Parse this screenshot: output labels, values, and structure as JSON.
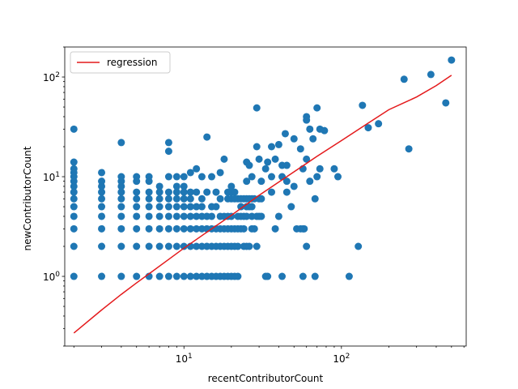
{
  "chart_data": {
    "type": "scatter",
    "title": "",
    "xlabel": "recentContributorCount",
    "ylabel": "newContributorCount",
    "xscale": "log",
    "yscale": "log",
    "xlim": [
      1.75,
      620
    ],
    "ylim": [
      0.2,
      200
    ],
    "x_ticks": [
      {
        "value": 10,
        "base": "10",
        "exp": "1"
      },
      {
        "value": 100,
        "base": "10",
        "exp": "2"
      }
    ],
    "y_ticks": [
      {
        "value": 1,
        "base": "10",
        "exp": "0"
      },
      {
        "value": 10,
        "base": "10",
        "exp": "1"
      },
      {
        "value": 100,
        "base": "10",
        "exp": "2"
      }
    ],
    "grid": false,
    "legend": {
      "position": "top-left",
      "entries": [
        "regression"
      ]
    },
    "colors": {
      "points": "#1f77b4",
      "regression": "#e41a1c"
    },
    "series": [
      {
        "kind": "scatter",
        "points": [
          [
            2,
            1
          ],
          [
            2,
            2
          ],
          [
            2,
            3
          ],
          [
            2,
            4
          ],
          [
            2,
            5
          ],
          [
            2,
            6
          ],
          [
            2,
            7
          ],
          [
            2,
            8
          ],
          [
            2,
            9
          ],
          [
            2,
            10
          ],
          [
            2,
            11
          ],
          [
            2,
            12
          ],
          [
            2,
            14
          ],
          [
            2,
            30
          ],
          [
            3,
            1
          ],
          [
            3,
            2
          ],
          [
            3,
            3
          ],
          [
            3,
            4
          ],
          [
            3,
            5
          ],
          [
            3,
            6
          ],
          [
            3,
            7
          ],
          [
            3,
            8
          ],
          [
            3,
            9
          ],
          [
            3,
            11
          ],
          [
            4,
            1
          ],
          [
            4,
            2
          ],
          [
            4,
            3
          ],
          [
            4,
            4
          ],
          [
            4,
            5
          ],
          [
            4,
            6
          ],
          [
            4,
            7
          ],
          [
            4,
            8
          ],
          [
            4,
            9
          ],
          [
            4,
            10
          ],
          [
            4,
            22
          ],
          [
            5,
            1
          ],
          [
            5,
            2
          ],
          [
            5,
            3
          ],
          [
            5,
            4
          ],
          [
            5,
            5
          ],
          [
            5,
            6
          ],
          [
            5,
            7
          ],
          [
            5,
            9
          ],
          [
            5,
            10
          ],
          [
            6,
            1
          ],
          [
            6,
            2
          ],
          [
            6,
            3
          ],
          [
            6,
            4
          ],
          [
            6,
            5
          ],
          [
            6,
            6
          ],
          [
            6,
            7
          ],
          [
            6,
            9
          ],
          [
            6,
            10
          ],
          [
            7,
            1
          ],
          [
            7,
            2
          ],
          [
            7,
            3
          ],
          [
            7,
            4
          ],
          [
            7,
            5
          ],
          [
            7,
            6
          ],
          [
            7,
            7
          ],
          [
            7,
            8
          ],
          [
            8,
            1
          ],
          [
            8,
            2
          ],
          [
            8,
            3
          ],
          [
            8,
            4
          ],
          [
            8,
            5
          ],
          [
            8,
            6
          ],
          [
            8,
            7
          ],
          [
            8,
            10
          ],
          [
            8,
            18
          ],
          [
            8,
            22
          ],
          [
            9,
            1
          ],
          [
            9,
            2
          ],
          [
            9,
            3
          ],
          [
            9,
            4
          ],
          [
            9,
            5
          ],
          [
            9,
            6
          ],
          [
            9,
            7
          ],
          [
            9,
            8
          ],
          [
            9,
            10
          ],
          [
            10,
            1
          ],
          [
            10,
            2
          ],
          [
            10,
            3
          ],
          [
            10,
            4
          ],
          [
            10,
            5
          ],
          [
            10,
            6
          ],
          [
            10,
            7
          ],
          [
            10,
            8
          ],
          [
            10,
            10
          ],
          [
            11,
            1
          ],
          [
            11,
            2
          ],
          [
            11,
            3
          ],
          [
            11,
            4
          ],
          [
            11,
            5
          ],
          [
            11,
            6
          ],
          [
            11,
            7
          ],
          [
            11,
            11
          ],
          [
            12,
            1
          ],
          [
            12,
            2
          ],
          [
            12,
            3
          ],
          [
            12,
            4
          ],
          [
            12,
            5
          ],
          [
            12,
            7
          ],
          [
            12,
            12
          ],
          [
            13,
            1
          ],
          [
            13,
            2
          ],
          [
            13,
            3
          ],
          [
            13,
            4
          ],
          [
            13,
            5
          ],
          [
            13,
            6
          ],
          [
            13,
            10
          ],
          [
            14,
            1
          ],
          [
            14,
            2
          ],
          [
            14,
            3
          ],
          [
            14,
            4
          ],
          [
            14,
            7
          ],
          [
            14,
            25
          ],
          [
            15,
            1
          ],
          [
            15,
            2
          ],
          [
            15,
            3
          ],
          [
            15,
            4
          ],
          [
            15,
            5
          ],
          [
            15,
            10
          ],
          [
            16,
            1
          ],
          [
            16,
            2
          ],
          [
            16,
            3
          ],
          [
            16,
            5
          ],
          [
            16,
            7
          ],
          [
            17,
            1
          ],
          [
            17,
            2
          ],
          [
            17,
            3
          ],
          [
            17,
            4
          ],
          [
            17,
            6
          ],
          [
            17,
            11
          ],
          [
            18,
            1
          ],
          [
            18,
            2
          ],
          [
            18,
            3
          ],
          [
            18,
            4
          ],
          [
            18,
            15
          ],
          [
            19,
            1
          ],
          [
            19,
            2
          ],
          [
            19,
            3
          ],
          [
            19,
            4
          ],
          [
            19,
            6
          ],
          [
            19,
            7
          ],
          [
            20,
            1
          ],
          [
            20,
            2
          ],
          [
            20,
            3
          ],
          [
            20,
            4
          ],
          [
            20,
            6
          ],
          [
            20,
            7
          ],
          [
            20,
            8
          ],
          [
            21,
            1
          ],
          [
            21,
            2
          ],
          [
            21,
            3
          ],
          [
            21,
            6
          ],
          [
            21,
            7
          ],
          [
            22,
            1
          ],
          [
            22,
            2
          ],
          [
            22,
            3
          ],
          [
            22,
            4
          ],
          [
            22,
            6
          ],
          [
            23,
            3
          ],
          [
            23,
            4
          ],
          [
            23,
            5
          ],
          [
            23,
            6
          ],
          [
            24,
            2
          ],
          [
            24,
            3
          ],
          [
            24,
            4
          ],
          [
            24,
            6
          ],
          [
            25,
            2
          ],
          [
            25,
            4
          ],
          [
            25,
            5
          ],
          [
            25,
            6
          ],
          [
            25,
            9
          ],
          [
            25,
            14
          ],
          [
            26,
            2
          ],
          [
            26,
            5
          ],
          [
            26,
            6
          ],
          [
            26,
            13
          ],
          [
            27,
            3
          ],
          [
            27,
            4
          ],
          [
            27,
            5
          ],
          [
            27,
            6
          ],
          [
            27,
            10
          ],
          [
            28,
            3
          ],
          [
            28,
            6
          ],
          [
            29,
            2
          ],
          [
            29,
            4
          ],
          [
            29,
            20
          ],
          [
            29,
            49
          ],
          [
            30,
            4
          ],
          [
            30,
            6
          ],
          [
            30,
            15
          ],
          [
            31,
            4
          ],
          [
            31,
            6
          ],
          [
            31,
            9
          ],
          [
            33,
            1
          ],
          [
            33,
            12
          ],
          [
            34,
            1
          ],
          [
            34,
            14
          ],
          [
            36,
            7
          ],
          [
            36,
            10
          ],
          [
            36,
            20
          ],
          [
            38,
            3
          ],
          [
            38,
            15
          ],
          [
            40,
            4
          ],
          [
            40,
            21
          ],
          [
            42,
            1
          ],
          [
            42,
            10
          ],
          [
            42,
            13
          ],
          [
            44,
            27
          ],
          [
            45,
            7
          ],
          [
            45,
            9
          ],
          [
            45,
            13
          ],
          [
            48,
            5
          ],
          [
            50,
            8
          ],
          [
            50,
            24
          ],
          [
            52,
            3
          ],
          [
            55,
            3
          ],
          [
            55,
            19
          ],
          [
            57,
            1
          ],
          [
            57,
            3
          ],
          [
            57,
            12
          ],
          [
            58,
            3
          ],
          [
            60,
            2
          ],
          [
            60,
            15
          ],
          [
            60,
            37
          ],
          [
            60,
            40
          ],
          [
            63,
            9
          ],
          [
            63,
            30
          ],
          [
            66,
            24
          ],
          [
            68,
            1
          ],
          [
            68,
            6
          ],
          [
            70,
            10
          ],
          [
            70,
            49
          ],
          [
            73,
            12
          ],
          [
            73,
            30
          ],
          [
            78,
            29
          ],
          [
            90,
            12
          ],
          [
            95,
            10
          ],
          [
            112,
            1
          ],
          [
            128,
            2
          ],
          [
            136,
            52
          ],
          [
            148,
            31
          ],
          [
            172,
            34
          ],
          [
            250,
            95
          ],
          [
            268,
            19
          ],
          [
            370,
            106
          ],
          [
            460,
            55
          ],
          [
            500,
            148
          ]
        ]
      },
      {
        "kind": "line",
        "name": "regression",
        "points": [
          [
            2,
            0.27
          ],
          [
            3,
            0.46
          ],
          [
            4,
            0.66
          ],
          [
            5,
            0.86
          ],
          [
            6,
            1.06
          ],
          [
            8,
            1.48
          ],
          [
            10,
            1.92
          ],
          [
            15,
            3.0
          ],
          [
            20,
            4.1
          ],
          [
            30,
            6.5
          ],
          [
            50,
            11.2
          ],
          [
            70,
            16.0
          ],
          [
            100,
            23.0
          ],
          [
            150,
            35.0
          ],
          [
            200,
            47.0
          ],
          [
            300,
            63.0
          ],
          [
            400,
            82.0
          ],
          [
            500,
            104.0
          ]
        ]
      }
    ]
  }
}
